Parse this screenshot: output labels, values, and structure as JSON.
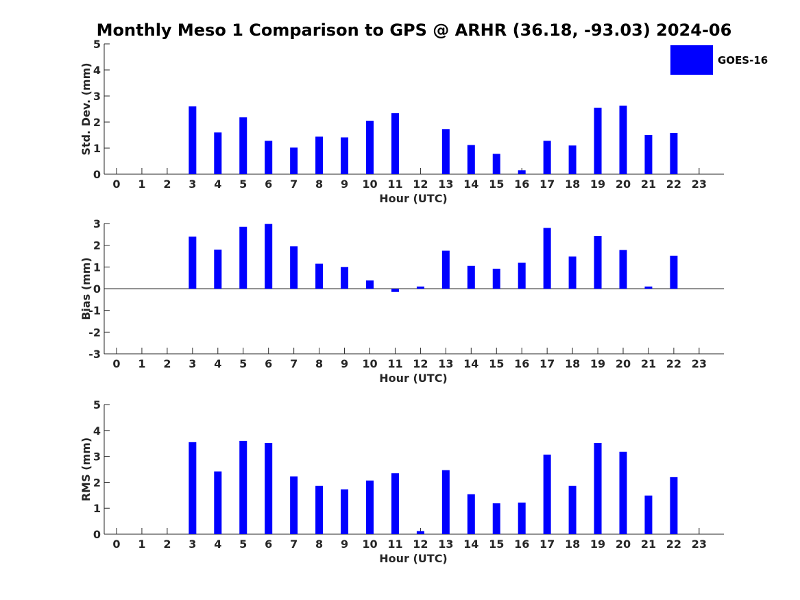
{
  "title": "Monthly Meso 1 Comparison to GPS @ ARHR (36.18, -93.03) 2024-06",
  "legend": {
    "label": "GOES-16",
    "color": "#0000ff"
  },
  "chart_data": [
    {
      "type": "bar",
      "xlabel": "Hour (UTC)",
      "ylabel": "Std. Dev. (mm)",
      "ylim": [
        0,
        5
      ],
      "yticks": [
        0,
        1,
        2,
        3,
        4,
        5
      ],
      "categories": [
        0,
        1,
        2,
        3,
        4,
        5,
        6,
        7,
        8,
        9,
        10,
        11,
        12,
        13,
        14,
        15,
        16,
        17,
        18,
        19,
        20,
        21,
        22,
        23
      ],
      "series": [
        {
          "name": "GOES-16",
          "color": "#0000ff",
          "values": [
            null,
            null,
            null,
            2.6,
            1.6,
            2.18,
            1.28,
            1.02,
            1.44,
            1.41,
            2.05,
            2.34,
            null,
            1.73,
            1.12,
            0.78,
            0.15,
            1.28,
            1.1,
            2.55,
            2.63,
            1.5,
            1.58,
            null
          ]
        }
      ]
    },
    {
      "type": "bar",
      "xlabel": "Hour (UTC)",
      "ylabel": "Bias (mm)",
      "ylim": [
        -3,
        3
      ],
      "yticks": [
        -3,
        -2,
        -1,
        0,
        1,
        2,
        3
      ],
      "categories": [
        0,
        1,
        2,
        3,
        4,
        5,
        6,
        7,
        8,
        9,
        10,
        11,
        12,
        13,
        14,
        15,
        16,
        17,
        18,
        19,
        20,
        21,
        22,
        23
      ],
      "series": [
        {
          "name": "GOES-16",
          "color": "#0000ff",
          "values": [
            null,
            null,
            null,
            2.4,
            1.8,
            2.85,
            2.98,
            1.95,
            1.15,
            1.0,
            0.38,
            -0.15,
            0.1,
            1.75,
            1.05,
            0.92,
            1.2,
            2.8,
            1.48,
            2.43,
            1.78,
            0.1,
            1.52,
            null
          ]
        }
      ]
    },
    {
      "type": "bar",
      "xlabel": "Hour (UTC)",
      "ylabel": "RMS (mm)",
      "ylim": [
        0,
        5
      ],
      "yticks": [
        0,
        1,
        2,
        3,
        4,
        5
      ],
      "categories": [
        0,
        1,
        2,
        3,
        4,
        5,
        6,
        7,
        8,
        9,
        10,
        11,
        12,
        13,
        14,
        15,
        16,
        17,
        18,
        19,
        20,
        21,
        22,
        23
      ],
      "series": [
        {
          "name": "GOES-16",
          "color": "#0000ff",
          "values": [
            null,
            null,
            null,
            3.55,
            2.42,
            3.6,
            3.52,
            2.23,
            1.86,
            1.73,
            2.07,
            2.35,
            0.12,
            2.47,
            1.54,
            1.19,
            1.22,
            3.07,
            1.86,
            3.52,
            3.18,
            1.49,
            2.2,
            null
          ]
        }
      ]
    }
  ]
}
